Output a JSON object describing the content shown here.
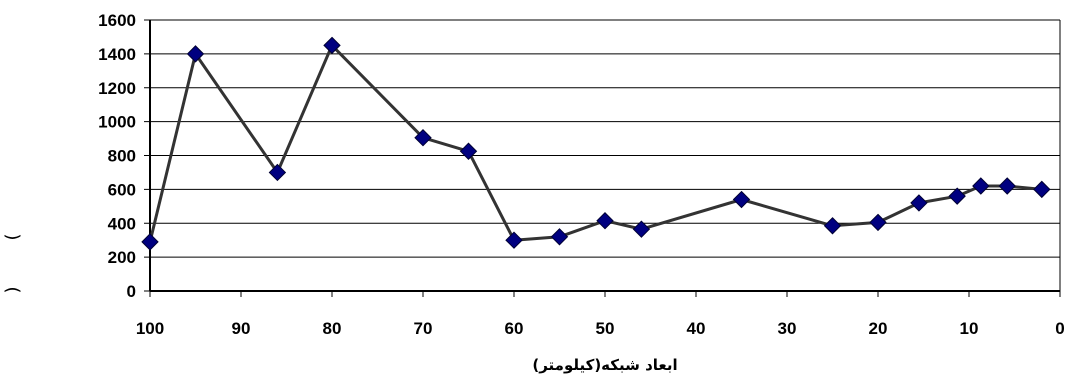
{
  "chart_data": {
    "type": "line",
    "xlabel": "ابعاد شبکه(کیلومتر)",
    "ylabel_fragments": [
      "(",
      ")"
    ],
    "x_reversed": true,
    "xlim": [
      0,
      100
    ],
    "ylim": [
      0,
      1600
    ],
    "xticks": [
      100,
      90,
      80,
      70,
      60,
      50,
      40,
      30,
      20,
      10,
      0
    ],
    "yticks": [
      0,
      200,
      400,
      600,
      800,
      1000,
      1200,
      1400,
      1600
    ],
    "grid": "horizontal",
    "series": [
      {
        "color": "#333333",
        "marker_color": "#000080",
        "marker": "diamond",
        "x": [
          100,
          95,
          86,
          80,
          70,
          65,
          60,
          55,
          50,
          46,
          35,
          25,
          20,
          15.5,
          11.3,
          8.7,
          5.8,
          2
        ],
        "y": [
          290,
          1400,
          700,
          1450,
          905,
          825,
          300,
          320,
          415,
          365,
          540,
          385,
          405,
          520,
          560,
          620,
          620,
          600
        ]
      }
    ]
  }
}
